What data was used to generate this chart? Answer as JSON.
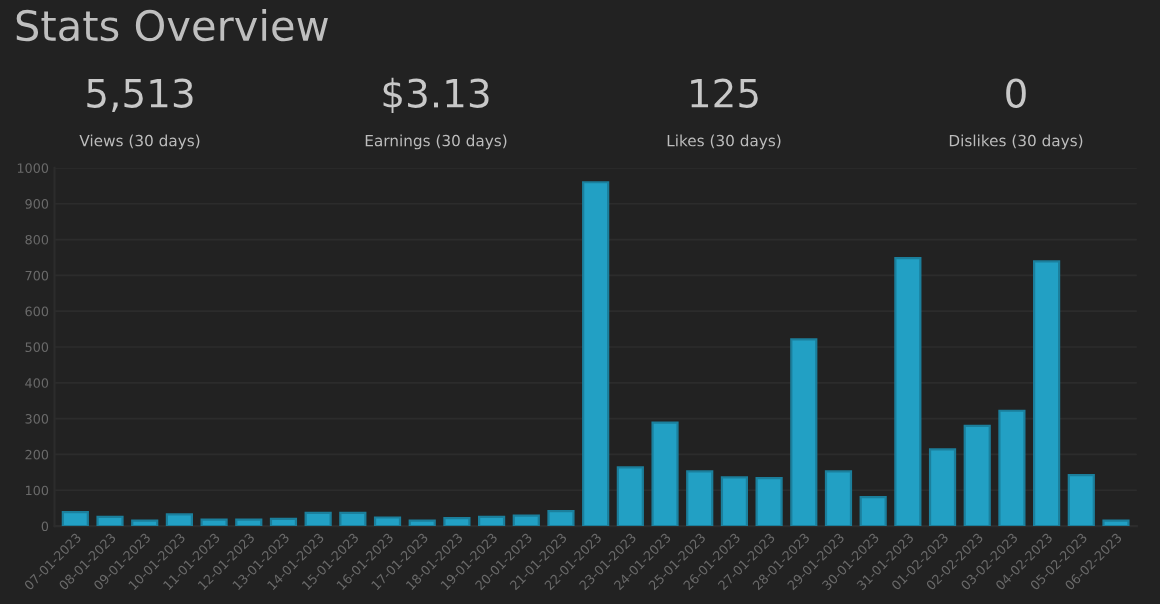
{
  "chart_data": {
    "type": "bar",
    "title": "Stats Overview",
    "annotations": [
      "5,513",
      "Views (30 days)",
      "$3.13",
      "Earnings (30 days)",
      "125",
      "Likes (30 days)",
      "0",
      "Dislikes (30 days)"
    ],
    "categories": [
      "07-01-2023",
      "08-01-2023",
      "09-01-2023",
      "10-01-2023",
      "11-01-2023",
      "12-01-2023",
      "13-01-2023",
      "14-01-2023",
      "15-01-2023",
      "16-01-2023",
      "17-01-2023",
      "18-01-2023",
      "19-01-2023",
      "20-01-2023",
      "21-01-2023",
      "22-01-2023",
      "23-01-2023",
      "24-01-2023",
      "25-01-2023",
      "26-01-2023",
      "27-01-2023",
      "28-01-2023",
      "29-01-2023",
      "30-01-2023",
      "31-01-2023",
      "01-02-2023",
      "02-02-2023",
      "03-02-2023",
      "04-02-2023",
      "05-02-2023",
      "06-02-2023"
    ],
    "values": [
      39,
      26,
      15,
      33,
      18,
      18,
      20,
      37,
      37,
      24,
      15,
      22,
      26,
      29,
      42,
      960,
      164,
      289,
      153,
      136,
      134,
      521,
      153,
      81,
      748,
      214,
      280,
      322,
      739,
      142,
      15
    ],
    "color": "#22a0c4",
    "ylim": [
      0,
      1000
    ],
    "yticks": [
      0,
      100,
      200,
      300,
      400,
      500,
      600,
      700,
      800,
      900,
      1000
    ],
    "grid": "y"
  }
}
